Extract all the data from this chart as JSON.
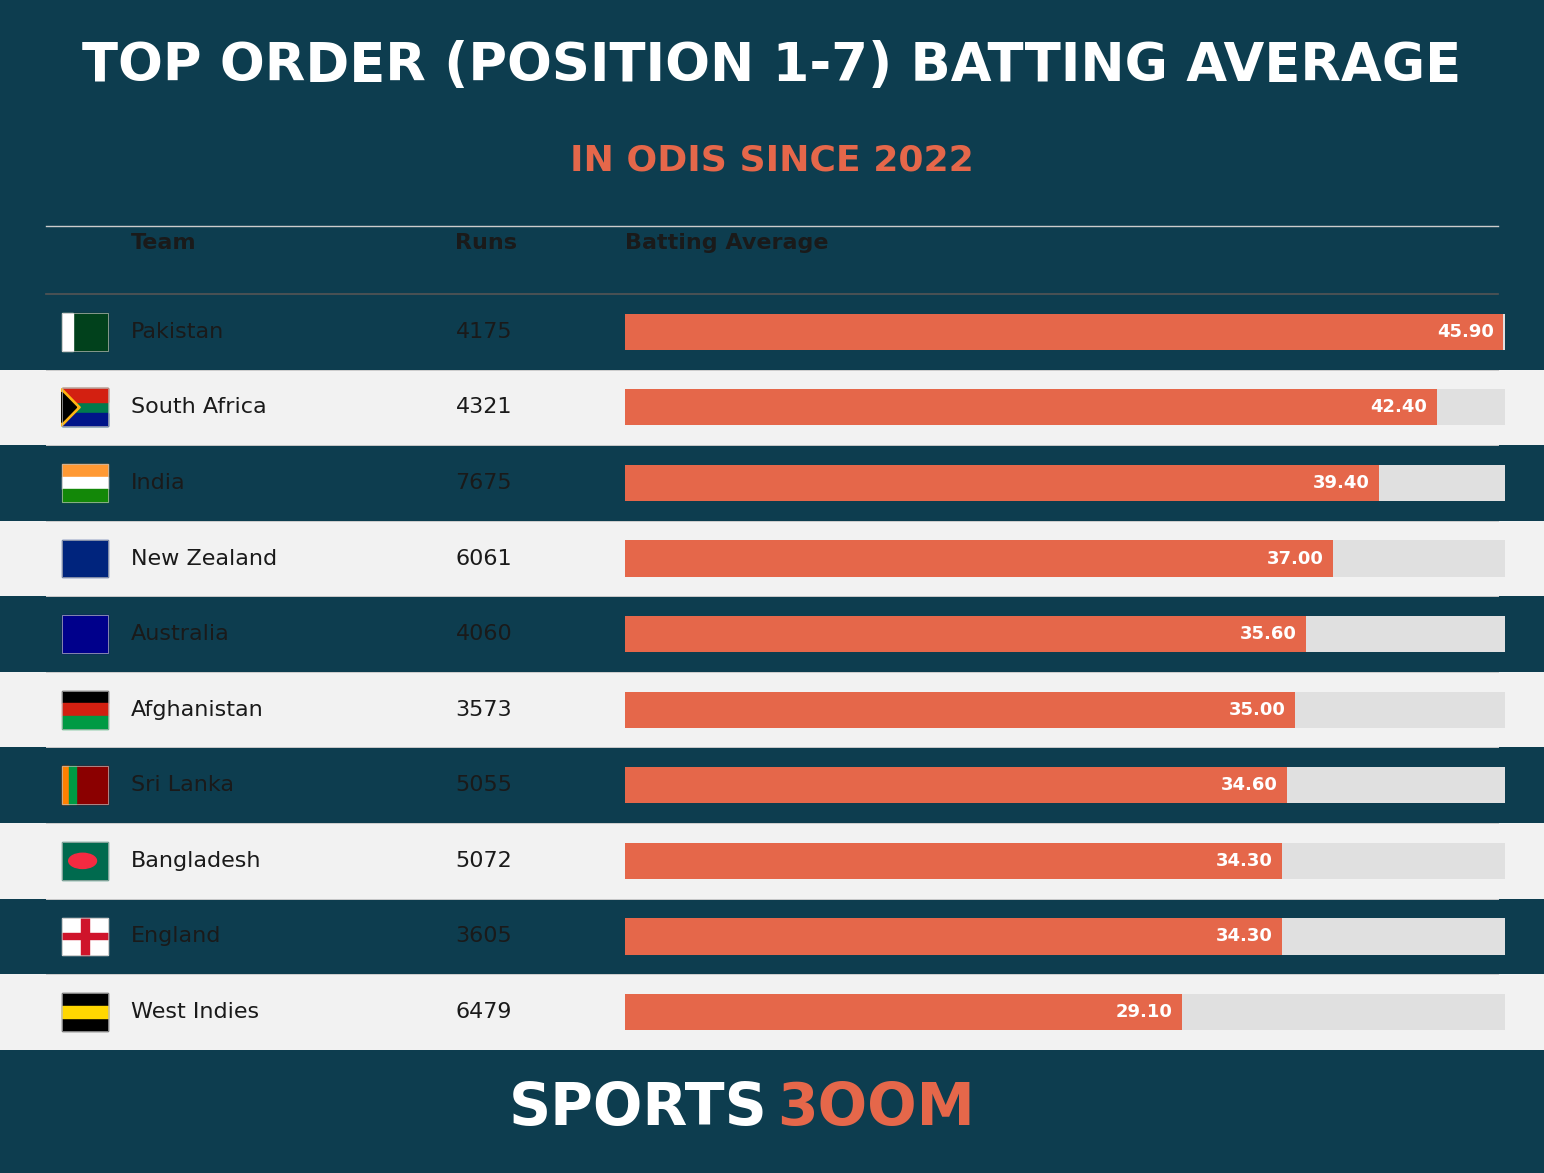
{
  "title_line1": "TOP ORDER (POSITION 1-7) BATTING AVERAGE",
  "title_line2": "IN ODIS SINCE 2022",
  "header_bg_color": "#0d3d4f",
  "footer_bg_color": "#0d3d4f",
  "table_bg_color": "#ffffff",
  "bar_color": "#e5674a",
  "bar_bg_color": "#e0e0e0",
  "separator_color": "#cccccc",
  "header_line_color": "#555555",
  "teams": [
    "Pakistan",
    "South Africa",
    "India",
    "New Zealand",
    "Australia",
    "Afghanistan",
    "Sri Lanka",
    "Bangladesh",
    "England",
    "West Indies"
  ],
  "runs": [
    4175,
    4321,
    7675,
    6061,
    4060,
    3573,
    5055,
    5072,
    3605,
    6479
  ],
  "averages": [
    45.9,
    42.4,
    39.4,
    37.0,
    35.6,
    35.0,
    34.6,
    34.3,
    34.3,
    29.1
  ],
  "max_average": 46.0,
  "title_fontsize": 38,
  "subtitle_fontsize": 26,
  "header_col_fontsize": 16,
  "row_fontsize": 16,
  "bar_label_fontsize": 13,
  "footer_fontsize": 42
}
